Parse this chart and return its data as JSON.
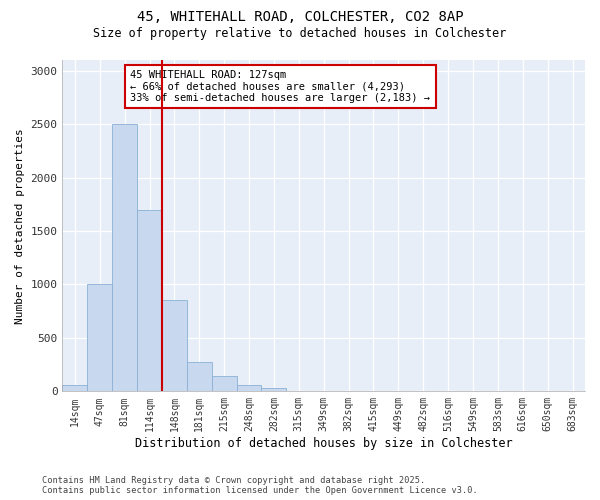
{
  "title1": "45, WHITEHALL ROAD, COLCHESTER, CO2 8AP",
  "title2": "Size of property relative to detached houses in Colchester",
  "xlabel": "Distribution of detached houses by size in Colchester",
  "ylabel": "Number of detached properties",
  "categories": [
    "14sqm",
    "47sqm",
    "81sqm",
    "114sqm",
    "148sqm",
    "181sqm",
    "215sqm",
    "248sqm",
    "282sqm",
    "315sqm",
    "349sqm",
    "382sqm",
    "415sqm",
    "449sqm",
    "482sqm",
    "516sqm",
    "549sqm",
    "583sqm",
    "616sqm",
    "650sqm",
    "683sqm"
  ],
  "values": [
    60,
    1000,
    2500,
    1700,
    850,
    270,
    140,
    60,
    30,
    0,
    0,
    0,
    0,
    0,
    0,
    0,
    0,
    0,
    0,
    0,
    0
  ],
  "bar_color": "#c8d9ef",
  "bar_edgecolor": "#8ab0d5",
  "vline_x": 3.5,
  "vline_color": "#cc0000",
  "annotation_text": "45 WHITEHALL ROAD: 127sqm\n← 66% of detached houses are smaller (4,293)\n33% of semi-detached houses are larger (2,183) →",
  "annotation_box_color": "#cc0000",
  "plot_bg_color": "#e8eef8",
  "fig_bg_color": "#ffffff",
  "ylim": [
    0,
    3100
  ],
  "yticks": [
    0,
    500,
    1000,
    1500,
    2000,
    2500,
    3000
  ],
  "footer1": "Contains HM Land Registry data © Crown copyright and database right 2025.",
  "footer2": "Contains public sector information licensed under the Open Government Licence v3.0."
}
